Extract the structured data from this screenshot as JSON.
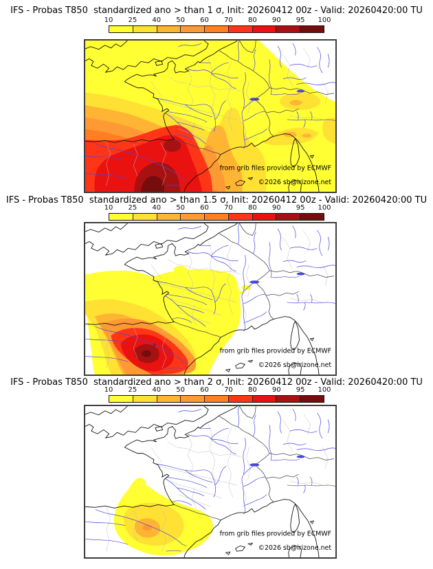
{
  "panels": [
    {
      "id": "1sigma",
      "title": "IFS - Probas T850  standardized ano > than 1 σ, Init: 20260412 00z - Valid: 20260420:00 TU"
    },
    {
      "id": "1.5sigma",
      "title": "IFS - Probas T850  standardized ano > than 1.5 σ, Init: 20260412 00z - Valid: 20260420:00 TU"
    },
    {
      "id": "2sigma",
      "title": "IFS - Probas T850  standardized ano > than 2 σ, Init: 20260412 00z - Valid: 20260420:00 TU"
    }
  ],
  "colorbar": {
    "ticks": [
      "10",
      "25",
      "40",
      "50",
      "60",
      "70",
      "80",
      "90",
      "95",
      "100"
    ],
    "colors": [
      "#ffff33",
      "#ffe133",
      "#ffb433",
      "#ff9933",
      "#ff7f21",
      "#ff3517",
      "#ea1210",
      "#a81111",
      "#760c0c"
    ]
  },
  "attribution": {
    "line1": "from grib files provided by ECMWF",
    "line2": "©2026 sb@irizone.net"
  },
  "map_style": {
    "coast": "#111111",
    "border": "#4a4a4a",
    "admin": "#bbbbbb",
    "river": "#4747e0",
    "frame": "#3c3c3c",
    "background": "#ffffff"
  }
}
